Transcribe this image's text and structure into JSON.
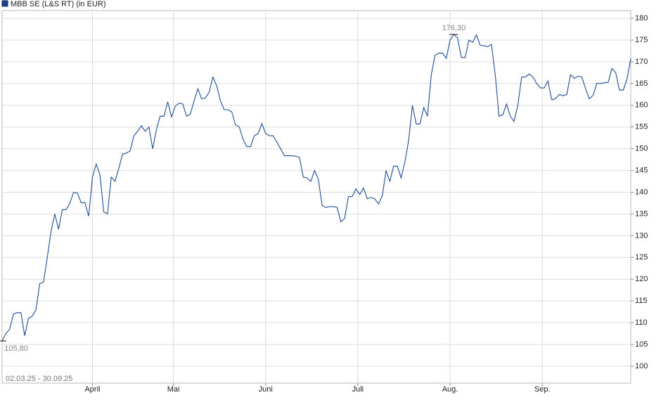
{
  "chart_data": {
    "type": "line",
    "legend": "MBB SE (L&S RT) (in EUR)",
    "range_label": "02.03.25 - 30.09.25",
    "series": [
      {
        "name": "MBB SE (L&S RT)",
        "color": "#1f4e96",
        "values": [
          105.8,
          107.5,
          108.5,
          112,
          112.3,
          112.3,
          107,
          111,
          111.5,
          113,
          119,
          119.3,
          125,
          131,
          135,
          131.5,
          136,
          136,
          137.5,
          140,
          139.8,
          137.6,
          137.6,
          134.5,
          143.5,
          146.5,
          144,
          135.5,
          135,
          143.5,
          142.5,
          145.5,
          148.8,
          149,
          149.5,
          153,
          154,
          155.3,
          154,
          155,
          150,
          154.5,
          157.5,
          157.5,
          160.8,
          157.3,
          159.8,
          160.5,
          160.3,
          157.5,
          158,
          161,
          163.8,
          161.5,
          161.7,
          163,
          166.5,
          164.5,
          161,
          159,
          159,
          158.5,
          155.5,
          155,
          152.2,
          150.5,
          150.5,
          153,
          153.5,
          155.8,
          153.5,
          153,
          153,
          151.5,
          150,
          148.4,
          148.4,
          148.4,
          148.3,
          148,
          143.5,
          143.3,
          142.5,
          145,
          143,
          137,
          136.5,
          136.7,
          136.7,
          136.5,
          133.2,
          134,
          139,
          139,
          140.8,
          139.5,
          141,
          138.5,
          138.8,
          138.5,
          137.3,
          139.2,
          145,
          142.5,
          146,
          146,
          143.3,
          147,
          152,
          160,
          155.7,
          155.7,
          159.5,
          157.5,
          167,
          171.5,
          172,
          172,
          170.8,
          175,
          176.3,
          175.5,
          171,
          171,
          175,
          174.5,
          176.2,
          173.8,
          173.7,
          173.5,
          174,
          167,
          157.5,
          157.8,
          160.3,
          157.5,
          156.3,
          160,
          166.5,
          166.5,
          167.2,
          166.5,
          165,
          164,
          164,
          165.6,
          161.3,
          161.5,
          162.5,
          162.2,
          162.5,
          167,
          166.2,
          166.7,
          166.5,
          163.8,
          161.5,
          162.3,
          165.1,
          165,
          165.2,
          165.3,
          168.5,
          167.5,
          163.5,
          163.5,
          166,
          170.8
        ]
      }
    ],
    "xlim": [
      0,
      167
    ],
    "xticks": [
      {
        "value": 24,
        "label": "April"
      },
      {
        "value": 45.5,
        "label": "Mai"
      },
      {
        "value": 70,
        "label": "Juni"
      },
      {
        "value": 94.5,
        "label": "Juli"
      },
      {
        "value": 119,
        "label": "Aug."
      },
      {
        "value": 143.5,
        "label": "Sep."
      }
    ],
    "ylim": [
      96.1,
      181.8
    ],
    "yticks": [
      100,
      105,
      110,
      115,
      120,
      125,
      130,
      135,
      140,
      145,
      150,
      155,
      160,
      165,
      170,
      175,
      180
    ],
    "grid": true,
    "annotations": [
      {
        "x": 120,
        "value": 176.3,
        "label": "176,30"
      },
      {
        "x": 0,
        "value": 105.8,
        "label": "105,80"
      }
    ]
  }
}
